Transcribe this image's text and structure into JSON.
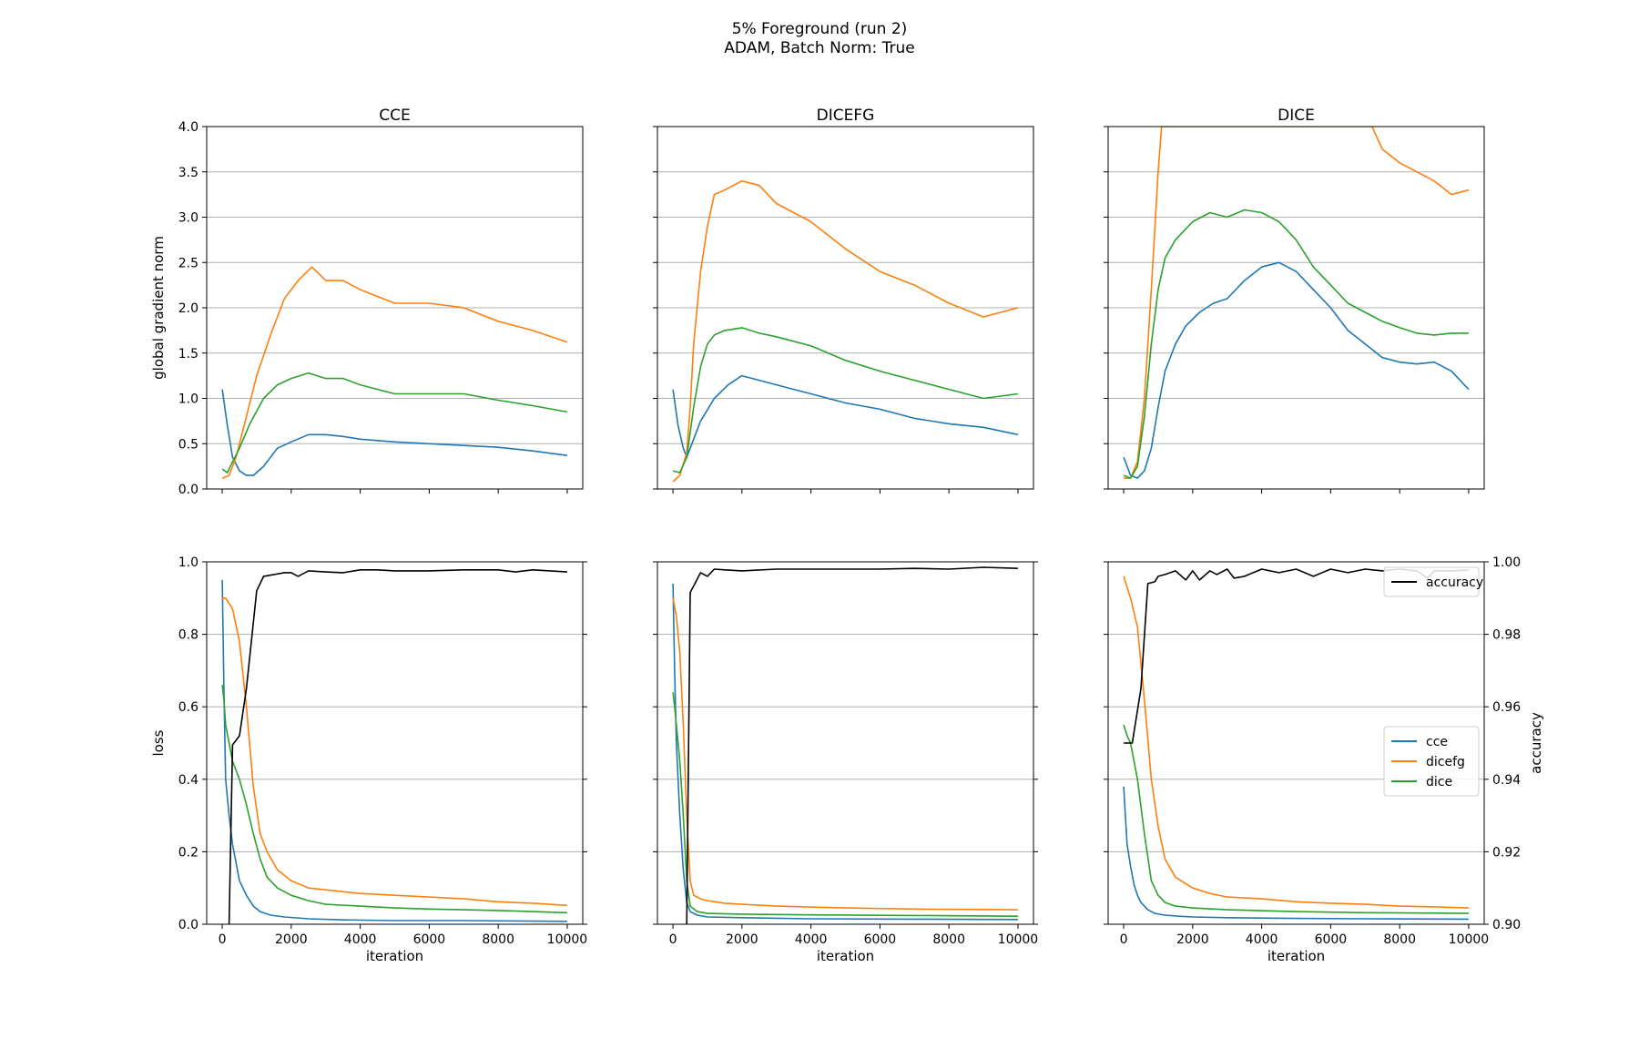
{
  "figure": {
    "suptitle": "5% Foreground (run 2)",
    "subtitle": "ADAM, Batch Norm: True"
  },
  "colors": {
    "cce": "#1f77b4",
    "dicefg": "#ff7f0e",
    "dice": "#2ca02c",
    "accuracy": "#000000",
    "grid": "#b0b0b0"
  },
  "chart_data": [
    {
      "type": "line",
      "title": "CCE",
      "ylabel": "global gradient norm",
      "xlabel": "",
      "xlim": [
        0,
        10000
      ],
      "ylim": [
        0,
        4.0
      ],
      "xticks": [
        0,
        2000,
        4000,
        6000,
        8000,
        10000
      ],
      "yticks": [
        "0.0",
        "0.5",
        "1.0",
        "1.5",
        "2.0",
        "2.5",
        "3.0",
        "3.5",
        "4.0"
      ],
      "grid": "y",
      "series": [
        {
          "name": "cce",
          "x": [
            0,
            150,
            300,
            500,
            700,
            900,
            1200,
            1600,
            2000,
            2500,
            3000,
            3500,
            4000,
            5000,
            6000,
            7000,
            8000,
            9000,
            10000
          ],
          "y": [
            1.1,
            0.7,
            0.35,
            0.2,
            0.15,
            0.15,
            0.25,
            0.45,
            0.52,
            0.6,
            0.6,
            0.58,
            0.55,
            0.52,
            0.5,
            0.48,
            0.46,
            0.42,
            0.37
          ]
        },
        {
          "name": "dicefg",
          "x": [
            0,
            200,
            400,
            700,
            1000,
            1400,
            1800,
            2200,
            2600,
            3000,
            3500,
            4000,
            5000,
            6000,
            7000,
            8000,
            9000,
            10000
          ],
          "y": [
            0.12,
            0.15,
            0.35,
            0.8,
            1.25,
            1.7,
            2.1,
            2.3,
            2.45,
            2.3,
            2.3,
            2.2,
            2.05,
            2.05,
            2.0,
            1.85,
            1.75,
            1.62
          ]
        },
        {
          "name": "dice",
          "x": [
            0,
            150,
            300,
            500,
            800,
            1200,
            1600,
            2000,
            2500,
            3000,
            3500,
            4000,
            5000,
            6000,
            7000,
            8000,
            9000,
            10000
          ],
          "y": [
            0.22,
            0.18,
            0.3,
            0.45,
            0.72,
            1.0,
            1.15,
            1.22,
            1.28,
            1.22,
            1.22,
            1.15,
            1.05,
            1.05,
            1.05,
            0.98,
            0.92,
            0.85
          ]
        }
      ]
    },
    {
      "type": "line",
      "title": "DICEFG",
      "ylabel": "",
      "xlabel": "",
      "xlim": [
        0,
        10000
      ],
      "ylim": [
        0,
        4.0
      ],
      "xticks": [
        0,
        2000,
        4000,
        6000,
        8000,
        10000
      ],
      "yticks": [],
      "grid": "y",
      "series": [
        {
          "name": "cce",
          "x": [
            0,
            150,
            300,
            400,
            600,
            800,
            1200,
            1600,
            2000,
            2500,
            3000,
            3500,
            4000,
            5000,
            6000,
            7000,
            8000,
            9000,
            10000
          ],
          "y": [
            1.1,
            0.7,
            0.45,
            0.35,
            0.55,
            0.75,
            1.0,
            1.15,
            1.25,
            1.2,
            1.15,
            1.1,
            1.05,
            0.95,
            0.88,
            0.78,
            0.72,
            0.68,
            0.6
          ]
        },
        {
          "name": "dicefg",
          "x": [
            0,
            200,
            400,
            500,
            600,
            800,
            1000,
            1200,
            1500,
            2000,
            2500,
            3000,
            3500,
            4000,
            5000,
            6000,
            7000,
            8000,
            9000,
            10000
          ],
          "y": [
            0.08,
            0.15,
            0.4,
            0.9,
            1.6,
            2.4,
            2.9,
            3.25,
            3.3,
            3.4,
            3.35,
            3.15,
            3.05,
            2.95,
            2.65,
            2.4,
            2.25,
            2.05,
            1.9,
            2.0
          ]
        },
        {
          "name": "dice",
          "x": [
            0,
            200,
            400,
            600,
            800,
            1000,
            1200,
            1500,
            2000,
            2500,
            3000,
            4000,
            5000,
            6000,
            7000,
            8000,
            9000,
            10000
          ],
          "y": [
            0.2,
            0.18,
            0.35,
            0.9,
            1.35,
            1.6,
            1.7,
            1.75,
            1.78,
            1.72,
            1.68,
            1.58,
            1.42,
            1.3,
            1.2,
            1.1,
            1.0,
            1.05
          ]
        }
      ]
    },
    {
      "type": "line",
      "title": "DICE",
      "ylabel": "",
      "xlabel": "",
      "xlim": [
        0,
        10000
      ],
      "ylim": [
        0,
        4.0
      ],
      "xticks": [
        0,
        2000,
        4000,
        6000,
        8000,
        10000
      ],
      "yticks": [],
      "grid": "y",
      "series": [
        {
          "name": "cce",
          "x": [
            0,
            200,
            400,
            600,
            800,
            1000,
            1200,
            1500,
            1800,
            2200,
            2600,
            3000,
            3500,
            4000,
            4500,
            5000,
            5500,
            6000,
            6500,
            7000,
            7500,
            8000,
            8500,
            9000,
            9500,
            10000
          ],
          "y": [
            0.35,
            0.15,
            0.12,
            0.2,
            0.45,
            0.9,
            1.3,
            1.6,
            1.8,
            1.95,
            2.05,
            2.1,
            2.3,
            2.45,
            2.5,
            2.4,
            2.2,
            2.0,
            1.75,
            1.6,
            1.45,
            1.4,
            1.38,
            1.4,
            1.3,
            1.1
          ]
        },
        {
          "name": "dicefg",
          "x": [
            0,
            200,
            400,
            600,
            800,
            1000,
            1100,
            7200,
            7500,
            8000,
            8500,
            9000,
            9500,
            10000
          ],
          "y": [
            0.12,
            0.12,
            0.3,
            1.0,
            2.2,
            3.5,
            4.0,
            4.0,
            3.75,
            3.6,
            3.5,
            3.4,
            3.25,
            3.3
          ]
        },
        {
          "name": "dice",
          "x": [
            0,
            200,
            400,
            600,
            800,
            1000,
            1200,
            1500,
            2000,
            2500,
            3000,
            3500,
            4000,
            4500,
            5000,
            5500,
            6000,
            6500,
            7000,
            7500,
            8000,
            8500,
            9000,
            9500,
            10000
          ],
          "y": [
            0.15,
            0.12,
            0.25,
            0.8,
            1.6,
            2.2,
            2.55,
            2.75,
            2.95,
            3.05,
            3.0,
            3.08,
            3.05,
            2.95,
            2.75,
            2.45,
            2.25,
            2.05,
            1.95,
            1.85,
            1.78,
            1.72,
            1.7,
            1.72,
            1.72
          ]
        }
      ]
    },
    {
      "type": "line",
      "title": "",
      "ylabel": "loss",
      "xlabel": "iteration",
      "xlim": [
        0,
        10000
      ],
      "ylim": [
        0,
        1.0
      ],
      "xticks": [
        0,
        2000,
        4000,
        6000,
        8000,
        10000
      ],
      "yticks": [
        "0.0",
        "0.2",
        "0.4",
        "0.6",
        "0.8",
        "1.0"
      ],
      "y2lim": [
        0.9,
        1.0
      ],
      "y2ticks": [],
      "grid": "y2",
      "series": [
        {
          "name": "cce",
          "x": [
            0,
            50,
            100,
            200,
            300,
            400,
            500,
            700,
            900,
            1100,
            1400,
            1800,
            2500,
            3500,
            5000,
            7000,
            10000
          ],
          "y": [
            0.95,
            0.65,
            0.4,
            0.3,
            0.22,
            0.17,
            0.12,
            0.08,
            0.05,
            0.035,
            0.025,
            0.02,
            0.015,
            0.012,
            0.01,
            0.01,
            0.008
          ]
        },
        {
          "name": "dicefg",
          "x": [
            0,
            100,
            300,
            500,
            700,
            900,
            1100,
            1300,
            1600,
            2000,
            2500,
            3000,
            4000,
            5000,
            6000,
            7000,
            8000,
            9000,
            10000
          ],
          "y": [
            0.9,
            0.9,
            0.87,
            0.78,
            0.6,
            0.38,
            0.25,
            0.2,
            0.15,
            0.12,
            0.1,
            0.095,
            0.085,
            0.08,
            0.075,
            0.07,
            0.062,
            0.058,
            0.052
          ]
        },
        {
          "name": "dice",
          "x": [
            0,
            50,
            100,
            200,
            300,
            500,
            700,
            900,
            1100,
            1300,
            1600,
            2000,
            2500,
            3000,
            4000,
            5000,
            6000,
            7000,
            8000,
            9000,
            10000
          ],
          "y": [
            0.66,
            0.62,
            0.55,
            0.5,
            0.45,
            0.4,
            0.33,
            0.25,
            0.18,
            0.13,
            0.1,
            0.08,
            0.065,
            0.055,
            0.05,
            0.045,
            0.042,
            0.04,
            0.038,
            0.035,
            0.032
          ]
        },
        {
          "name": "accuracy",
          "axis": "right",
          "x": [
            200,
            300,
            500,
            700,
            1000,
            1200,
            1500,
            1800,
            2000,
            2200,
            2500,
            3000,
            3500,
            4000,
            4500,
            5000,
            5500,
            6000,
            7000,
            8000,
            8500,
            9000,
            9500,
            10000
          ],
          "y": [
            0.9,
            0.9495,
            0.952,
            0.965,
            0.992,
            0.996,
            0.9965,
            0.997,
            0.997,
            0.996,
            0.9975,
            0.9972,
            0.997,
            0.9978,
            0.9978,
            0.9975,
            0.9975,
            0.9975,
            0.9978,
            0.9978,
            0.9972,
            0.9978,
            0.9975,
            0.9972
          ]
        }
      ]
    },
    {
      "type": "line",
      "title": "",
      "ylabel": "",
      "xlabel": "iteration",
      "xlim": [
        0,
        10000
      ],
      "ylim": [
        0,
        1.0
      ],
      "xticks": [
        0,
        2000,
        4000,
        6000,
        8000,
        10000
      ],
      "yticks": [],
      "y2lim": [
        0.9,
        1.0
      ],
      "y2ticks": [],
      "grid": "y2",
      "series": [
        {
          "name": "cce",
          "x": [
            0,
            50,
            100,
            200,
            300,
            400,
            500,
            700,
            1000,
            2000,
            4000,
            7000,
            10000
          ],
          "y": [
            0.94,
            0.7,
            0.5,
            0.3,
            0.15,
            0.06,
            0.035,
            0.025,
            0.02,
            0.018,
            0.015,
            0.014,
            0.013
          ]
        },
        {
          "name": "dicefg",
          "x": [
            0,
            100,
            200,
            300,
            400,
            500,
            600,
            800,
            1000,
            1500,
            2000,
            3000,
            5000,
            7000,
            10000
          ],
          "y": [
            0.9,
            0.85,
            0.75,
            0.55,
            0.3,
            0.12,
            0.08,
            0.07,
            0.065,
            0.058,
            0.055,
            0.05,
            0.045,
            0.042,
            0.04
          ]
        },
        {
          "name": "dice",
          "x": [
            0,
            50,
            100,
            200,
            300,
            400,
            500,
            700,
            1000,
            2000,
            4000,
            7000,
            10000
          ],
          "y": [
            0.64,
            0.6,
            0.55,
            0.45,
            0.3,
            0.12,
            0.05,
            0.035,
            0.03,
            0.028,
            0.026,
            0.024,
            0.022
          ]
        },
        {
          "name": "accuracy",
          "axis": "right",
          "x": [
            400,
            500,
            800,
            1000,
            1200,
            1500,
            2000,
            3000,
            4000,
            5000,
            6000,
            7000,
            8000,
            9000,
            10000
          ],
          "y": [
            0.9,
            0.9915,
            0.997,
            0.996,
            0.998,
            0.9978,
            0.9975,
            0.998,
            0.998,
            0.998,
            0.998,
            0.9982,
            0.998,
            0.9985,
            0.9982
          ]
        }
      ]
    },
    {
      "type": "line",
      "title": "",
      "ylabel": "",
      "xlabel": "iteration",
      "xlim": [
        0,
        10000
      ],
      "ylim": [
        0,
        1.0
      ],
      "xticks": [
        0,
        2000,
        4000,
        6000,
        8000,
        10000
      ],
      "yticks": [],
      "y2label": "accuracy",
      "y2lim": [
        0.9,
        1.0
      ],
      "y2ticks": [
        "0.90",
        "0.92",
        "0.94",
        "0.96",
        "0.98",
        "1.00"
      ],
      "grid": "y2",
      "legends": [
        {
          "placement": "top-right",
          "entries": [
            "accuracy"
          ]
        },
        {
          "placement": "center-right",
          "entries": [
            "cce",
            "dicefg",
            "dice"
          ]
        }
      ],
      "series": [
        {
          "name": "cce",
          "x": [
            0,
            50,
            100,
            200,
            300,
            400,
            500,
            700,
            900,
            1200,
            1600,
            2000,
            3000,
            5000,
            7000,
            10000
          ],
          "y": [
            0.38,
            0.3,
            0.22,
            0.16,
            0.11,
            0.08,
            0.06,
            0.04,
            0.03,
            0.025,
            0.022,
            0.02,
            0.018,
            0.016,
            0.015,
            0.014
          ]
        },
        {
          "name": "dicefg",
          "x": [
            0,
            100,
            200,
            400,
            600,
            800,
            1000,
            1200,
            1500,
            2000,
            2500,
            3000,
            4000,
            5000,
            6000,
            7000,
            8000,
            9000,
            10000
          ],
          "y": [
            0.96,
            0.93,
            0.9,
            0.82,
            0.62,
            0.4,
            0.27,
            0.18,
            0.13,
            0.1,
            0.085,
            0.075,
            0.07,
            0.062,
            0.058,
            0.055,
            0.05,
            0.048,
            0.045
          ]
        },
        {
          "name": "dice",
          "x": [
            0,
            100,
            200,
            400,
            600,
            800,
            1000,
            1200,
            1500,
            2000,
            3000,
            5000,
            7000,
            10000
          ],
          "y": [
            0.55,
            0.52,
            0.5,
            0.4,
            0.25,
            0.12,
            0.08,
            0.06,
            0.05,
            0.045,
            0.04,
            0.035,
            0.032,
            0.03
          ]
        },
        {
          "name": "accuracy",
          "axis": "right",
          "x": [
            0,
            250,
            500,
            700,
            900,
            1000,
            1200,
            1500,
            1800,
            2000,
            2200,
            2500,
            2700,
            3000,
            3200,
            3500,
            4000,
            4500,
            5000,
            5500,
            6000,
            6500,
            7000,
            7500,
            8000,
            8500,
            8800,
            9000,
            9500,
            10000
          ],
          "y": [
            0.95,
            0.95,
            0.965,
            0.994,
            0.9945,
            0.996,
            0.9965,
            0.9975,
            0.995,
            0.9975,
            0.995,
            0.9975,
            0.9965,
            0.998,
            0.9955,
            0.996,
            0.998,
            0.997,
            0.998,
            0.996,
            0.998,
            0.997,
            0.998,
            0.9975,
            0.998,
            0.9975,
            0.9955,
            0.9975,
            0.9975,
            0.9978
          ]
        }
      ]
    }
  ]
}
